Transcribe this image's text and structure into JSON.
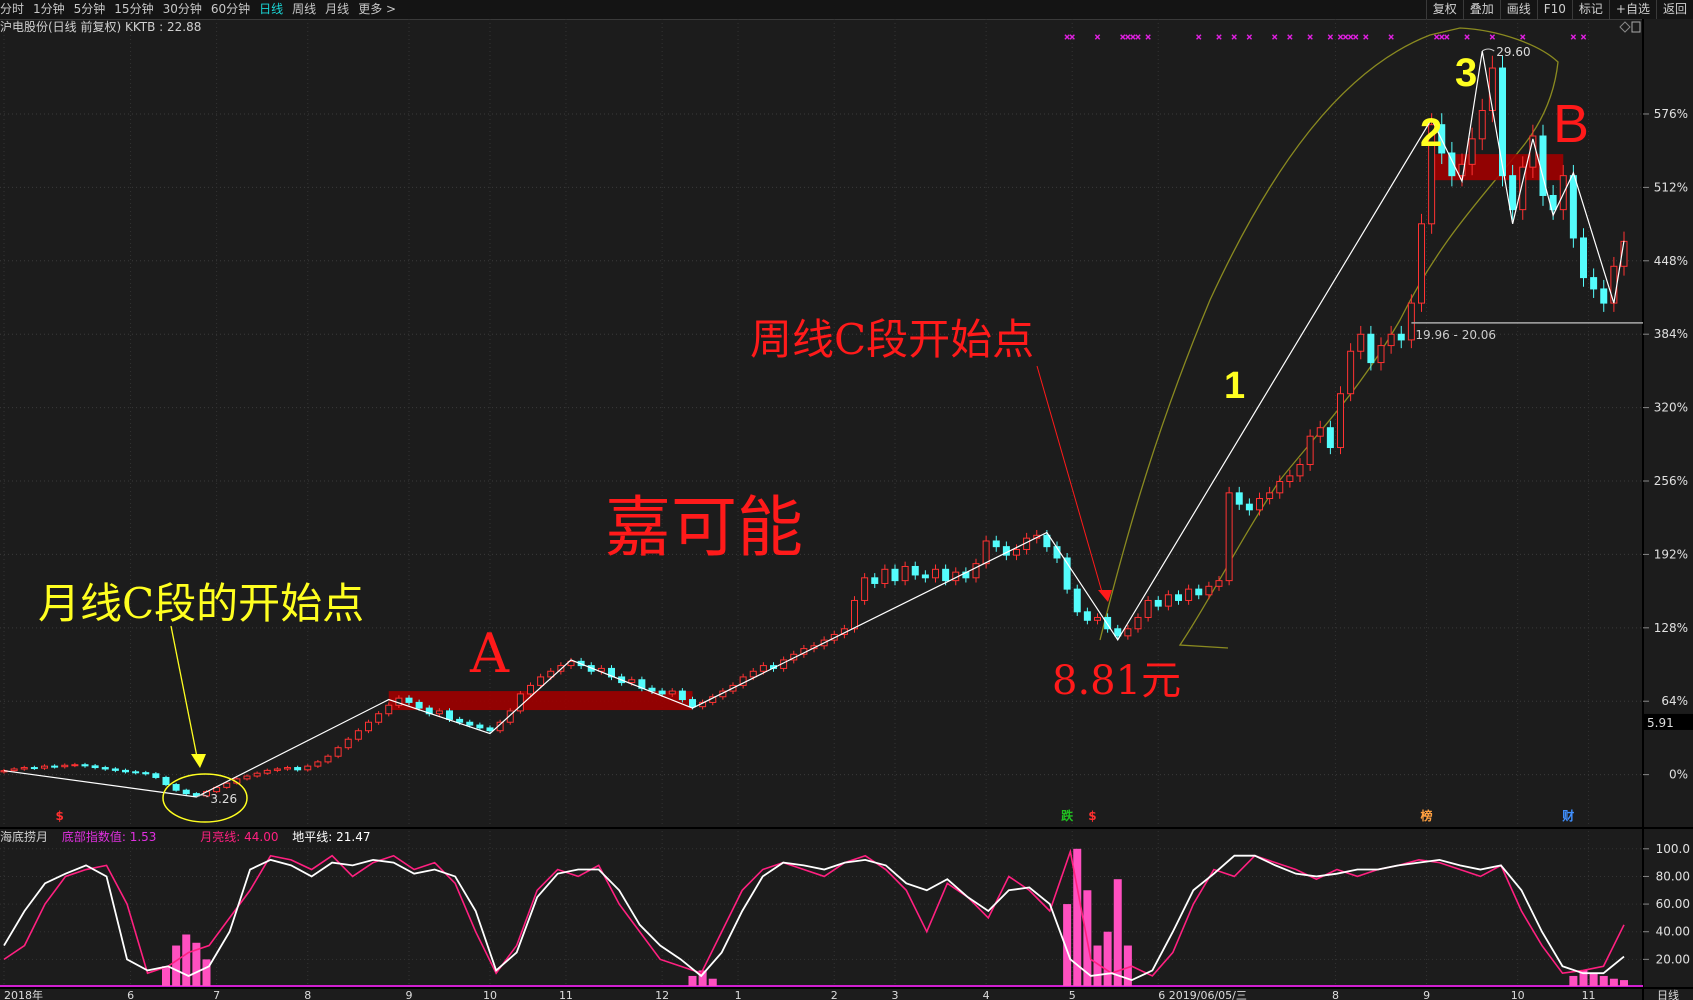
{
  "topbar": {
    "periods": [
      "分时",
      "1分钟",
      "5分钟",
      "15分钟",
      "30分钟",
      "60分钟",
      "日线",
      "周线",
      "月线",
      "更多 >"
    ],
    "active_period": "日线",
    "tools": [
      "复权",
      "叠加",
      "画线",
      "F10",
      "标记",
      "+自选",
      "返回"
    ]
  },
  "info": {
    "title": "沪电股份(日线 前复权) KKTB : 22.88"
  },
  "indicator": {
    "name": "海底捞月",
    "bottom_label": "底部指数值: 1.53",
    "moon_label": "月亮线: 44.00",
    "horizon_label": "地平线: 21.47",
    "colors": {
      "bottom": "#e030e0",
      "moon": "#ff2080",
      "horizon": "#ffffff"
    }
  },
  "colors": {
    "background": "#1c1c1c",
    "up": "#ff3232",
    "down": "#54fcfc",
    "accent_red": "#ff1a1a",
    "accent_yellow": "#ffff20",
    "envelope": "#8a8a20",
    "signal": "#e020e0",
    "box": "#a00000"
  },
  "chart_data": [
    {
      "type": "candlestick",
      "title": "沪电股份(日线 前复权)",
      "closes": [
        4.19,
        4.25,
        4.3,
        4.28,
        4.35,
        4.33,
        4.38,
        4.4,
        4.36,
        4.3,
        4.25,
        4.2,
        4.15,
        4.12,
        4.08,
        3.95,
        3.7,
        3.5,
        3.38,
        3.3,
        3.45,
        3.6,
        3.75,
        3.9,
        4.0,
        4.1,
        4.2,
        4.25,
        4.3,
        4.22,
        4.35,
        4.5,
        4.7,
        5.0,
        5.3,
        5.6,
        5.9,
        6.2,
        6.5,
        6.75,
        6.6,
        6.4,
        6.2,
        6.3,
        6.0,
        5.9,
        5.8,
        5.7,
        5.6,
        5.9,
        6.3,
        6.9,
        7.2,
        7.5,
        7.7,
        7.9,
        8.05,
        7.9,
        7.7,
        7.8,
        7.5,
        7.3,
        7.4,
        7.1,
        7.0,
        6.9,
        7.0,
        6.7,
        6.45,
        6.6,
        6.8,
        7.0,
        7.2,
        7.5,
        7.7,
        7.9,
        7.8,
        8.1,
        8.3,
        8.5,
        8.6,
        8.8,
        9.0,
        9.2,
        10.2,
        11.0,
        10.8,
        11.3,
        10.9,
        11.4,
        11.1,
        11.0,
        11.3,
        10.9,
        11.2,
        11.0,
        11.5,
        12.3,
        12.1,
        11.8,
        12.0,
        12.4,
        12.5,
        12.1,
        11.7,
        10.6,
        9.8,
        9.5,
        9.6,
        9.2,
        8.95,
        9.2,
        9.6,
        10.2,
        10.0,
        10.4,
        10.2,
        10.6,
        10.4,
        10.7,
        10.9,
        14.0,
        13.6,
        13.4,
        13.8,
        14.0,
        14.4,
        14.6,
        15.0,
        16.0,
        16.3,
        15.6,
        17.5,
        19.0,
        19.6,
        18.6,
        19.2,
        19.6,
        19.4,
        20.7,
        23.5,
        27.0,
        26.0,
        25.2,
        25.6,
        26.5,
        27.5,
        29.0,
        25.2,
        24.0,
        25.5,
        26.6,
        24.5,
        24.0,
        25.2,
        23.0,
        21.6,
        21.2,
        20.7,
        22.0,
        22.88
      ],
      "zigzag": [
        [
          0,
          4.19
        ],
        [
          19,
          3.26
        ],
        [
          38,
          6.7
        ],
        [
          48,
          5.5
        ],
        [
          56,
          8.1
        ],
        [
          68,
          6.4
        ],
        [
          103,
          12.6
        ],
        [
          110,
          8.81
        ],
        [
          141,
          27.2
        ],
        [
          144,
          25.0
        ],
        [
          146,
          29.6
        ],
        [
          149,
          23.5
        ],
        [
          151,
          26.5
        ],
        [
          153,
          23.8
        ],
        [
          155,
          25.3
        ],
        [
          159,
          20.7
        ],
        [
          160,
          22.9
        ]
      ],
      "boxes": [
        {
          "label": "A",
          "from": 38,
          "to": 68,
          "low": 6.33,
          "high": 7.0
        },
        {
          "label": "B",
          "from": 141,
          "to": 154,
          "low": 25.04,
          "high": 25.96
        }
      ],
      "level_line": {
        "from": 139,
        "price": 20.0,
        "label": "19.96 - 20.06"
      },
      "price_labels": [
        {
          "i": 19,
          "price": 3.26,
          "text": "3.26"
        },
        {
          "i": 146,
          "price": 29.6,
          "text": "29.60"
        }
      ],
      "signal_markers": [
        105,
        105.5,
        108,
        110.5,
        111,
        111.5,
        112,
        113,
        118,
        120,
        121.5,
        123,
        125.5,
        127,
        129,
        131,
        132,
        132.5,
        133,
        133.5,
        134.5,
        137,
        141.5,
        142,
        142.5,
        144.5,
        147,
        150,
        155,
        156
      ],
      "event_markers": [
        {
          "i": 5.5,
          "text": "$",
          "color": "#ff3030"
        },
        {
          "i": 105,
          "text": "跌",
          "color": "#20c020"
        },
        {
          "i": 107.5,
          "text": "$",
          "color": "#ff3030"
        },
        {
          "i": 140.5,
          "text": "榜",
          "color": "#ffa040"
        },
        {
          "i": 154.5,
          "text": "财",
          "color": "#4090ff"
        }
      ],
      "cursor_price": "5.91",
      "y_ticks": [
        "0%",
        "64%",
        "128%",
        "192%",
        "256%",
        "320%",
        "384%",
        "448%",
        "512%",
        "576%"
      ],
      "x_ticks": [
        {
          "label": "2018年",
          "i": 0
        },
        {
          "label": "6",
          "i": 12.5
        },
        {
          "label": "7",
          "i": 21
        },
        {
          "label": "8",
          "i": 30
        },
        {
          "label": "9",
          "i": 40
        },
        {
          "label": "10",
          "i": 48
        },
        {
          "label": "11",
          "i": 55.5
        },
        {
          "label": "12",
          "i": 65
        },
        {
          "label": "1",
          "i": 72.5
        },
        {
          "label": "2",
          "i": 82
        },
        {
          "label": "3",
          "i": 88
        },
        {
          "label": "4",
          "i": 97
        },
        {
          "label": "5",
          "i": 105.5
        },
        {
          "label": "6 2019/06/05/三",
          "i": 114
        },
        {
          "label": "8",
          "i": 131.5
        },
        {
          "label": "9",
          "i": 140.5
        },
        {
          "label": "10",
          "i": 149.5
        },
        {
          "label": "11",
          "i": 156.5
        }
      ],
      "x_axis_label": "日线",
      "annotations": {
        "monthly_c": "月线C段的开始点",
        "label_a": "A",
        "jiakeneng": "嘉可能",
        "weekly_c": "周线C段开始点",
        "price_881": "8.81元",
        "wave1": "1",
        "wave2": "2",
        "wave3": "3",
        "label_b": "B"
      }
    },
    {
      "type": "line",
      "ylim": [
        0,
        100
      ],
      "y_ticks": [
        "20.00",
        "40.00",
        "60.00",
        "80.00",
        "100.0"
      ],
      "horizon_series": [
        30,
        55,
        75,
        82,
        88,
        80,
        20,
        12,
        15,
        8,
        15,
        40,
        85,
        92,
        88,
        80,
        90,
        88,
        92,
        90,
        82,
        85,
        80,
        55,
        12,
        25,
        65,
        82,
        85,
        85,
        70,
        45,
        30,
        20,
        8,
        25,
        55,
        80,
        90,
        88,
        85,
        90,
        92,
        88,
        75,
        70,
        78,
        65,
        55,
        70,
        72,
        60,
        20,
        8,
        10,
        5,
        12,
        40,
        70,
        82,
        95,
        95,
        88,
        82,
        80,
        82,
        85,
        85,
        88,
        90,
        92,
        88,
        85,
        88,
        70,
        40,
        15,
        10,
        10,
        22
      ],
      "moon_series": [
        20,
        30,
        60,
        80,
        85,
        88,
        60,
        10,
        15,
        25,
        30,
        50,
        70,
        95,
        92,
        85,
        95,
        80,
        90,
        95,
        85,
        90,
        75,
        40,
        10,
        30,
        70,
        85,
        80,
        88,
        60,
        40,
        20,
        15,
        10,
        40,
        70,
        85,
        90,
        85,
        80,
        90,
        95,
        85,
        70,
        40,
        75,
        65,
        50,
        80,
        70,
        55,
        98,
        20,
        10,
        15,
        8,
        25,
        60,
        85,
        80,
        95,
        90,
        85,
        78,
        85,
        80,
        85,
        88,
        92,
        90,
        85,
        80,
        88,
        55,
        30,
        10,
        12,
        15,
        45
      ],
      "bottom_bars": [
        [
          16,
          15
        ],
        [
          17,
          30
        ],
        [
          18,
          38
        ],
        [
          19,
          32
        ],
        [
          20,
          20
        ],
        [
          68,
          8
        ],
        [
          69,
          12
        ],
        [
          70,
          6
        ],
        [
          105,
          60
        ],
        [
          106,
          100
        ],
        [
          107,
          70
        ],
        [
          108,
          30
        ],
        [
          109,
          40
        ],
        [
          110,
          78
        ],
        [
          111,
          30
        ],
        [
          155,
          8
        ],
        [
          156,
          12
        ],
        [
          157,
          10
        ],
        [
          158,
          8
        ],
        [
          159,
          6
        ],
        [
          160,
          5
        ]
      ]
    }
  ]
}
